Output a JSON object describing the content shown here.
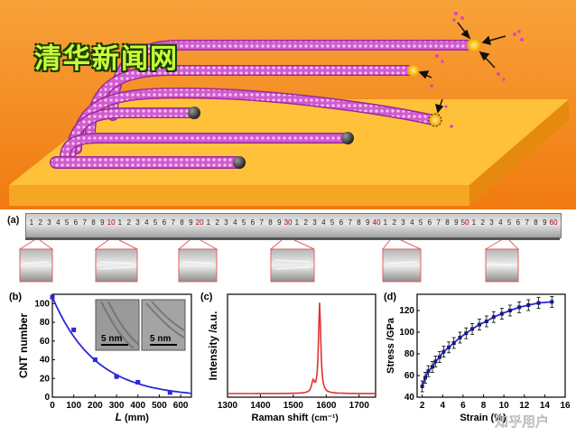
{
  "header": {
    "watermark": "清华新闻网"
  },
  "panel_a": {
    "label": "(a)",
    "ruler_ticks": [
      "1",
      "2",
      "3",
      "4",
      "5",
      "6",
      "7",
      "8",
      "9",
      "10",
      "1",
      "2",
      "3",
      "4",
      "5",
      "6",
      "7",
      "8",
      "9",
      "20",
      "1",
      "2",
      "3",
      "4",
      "5",
      "6",
      "7",
      "8",
      "9",
      "30",
      "1",
      "2",
      "3",
      "4",
      "5",
      "6",
      "7",
      "8",
      "9",
      "40",
      "1",
      "2",
      "3",
      "4",
      "5",
      "6",
      "7",
      "8",
      "9",
      "50",
      "1",
      "2",
      "3",
      "4",
      "5",
      "6",
      "7",
      "8",
      "9",
      "60"
    ]
  },
  "panel_b": {
    "label": "(b)",
    "inset_scale_1": "5 nm",
    "inset_scale_2": "5 nm"
  },
  "panel_c": {
    "label": "(c)"
  },
  "panel_d": {
    "label": "(d)"
  },
  "footer": {
    "watermark": "知乎用户"
  },
  "colors": {
    "background_orange": "#f7941d",
    "slab": "#ffc03a",
    "tube": "#b02fae",
    "fit_blue": "#2a2ad8",
    "raman_red": "#e33030"
  },
  "chart_data": [
    {
      "type": "scatter",
      "panel": "b",
      "xlabel": "L",
      "xlabel_unit": "(mm)",
      "ylabel": "CNT number",
      "xlim": [
        0,
        650
      ],
      "ylim": [
        0,
        110
      ],
      "xticks": [
        "0",
        "100",
        "200",
        "300",
        "400",
        "500",
        "600"
      ],
      "yticks": [
        "0",
        "20",
        "40",
        "60",
        "80",
        "100"
      ],
      "x": [
        0,
        100,
        200,
        300,
        400,
        550
      ],
      "y": [
        107,
        72,
        40,
        22,
        16,
        5
      ],
      "fit": "exponential decay"
    },
    {
      "type": "line",
      "panel": "c",
      "xlabel": "Raman shift",
      "xlabel_unit": "(cm⁻¹)",
      "ylabel": "Intensity /a.u.",
      "xlim": [
        1300,
        1750
      ],
      "xticks": [
        "1300",
        "1400",
        "1500",
        "1600",
        "1700"
      ],
      "peak_position": 1580,
      "shoulder_position": 1560
    },
    {
      "type": "scatter",
      "panel": "d",
      "xlabel": "Strain (%)",
      "ylabel": "Stress /GPa",
      "xlim": [
        1.5,
        16
      ],
      "ylim": [
        40,
        135
      ],
      "xticks": [
        "2",
        "4",
        "6",
        "8",
        "10",
        "12",
        "14",
        "16"
      ],
      "yticks": [
        "40",
        "60",
        "80",
        "100",
        "120"
      ],
      "x": [
        2.0,
        2.3,
        2.6,
        3.0,
        3.3,
        3.7,
        4.1,
        4.6,
        5.1,
        5.7,
        6.3,
        6.9,
        7.6,
        8.3,
        9.0,
        9.8,
        10.6,
        11.5,
        12.4,
        13.4,
        14.7
      ],
      "y": [
        50,
        58,
        64,
        68,
        73,
        77,
        82,
        86,
        90,
        95,
        99,
        103,
        107,
        110,
        114,
        117,
        120,
        123,
        125,
        127,
        128
      ],
      "error": 5
    }
  ]
}
